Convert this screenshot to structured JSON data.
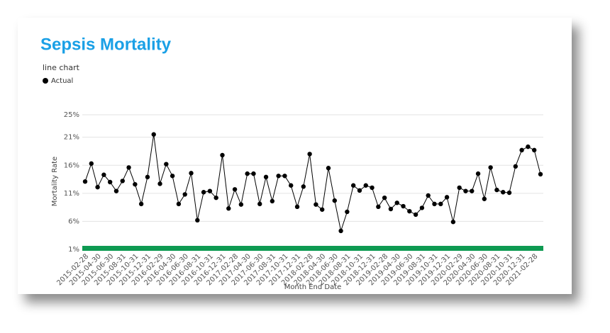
{
  "chart_data": {
    "type": "line",
    "title": "Sepsis Mortality",
    "subtitle": "line chart",
    "x_label": "Month End Date",
    "y_label": "Mortality Rate",
    "categories": [
      "2015-02-28",
      null,
      "2015-04-30",
      null,
      "2015-06-30",
      null,
      "2015-08-31",
      null,
      "2015-10-31",
      null,
      "2015-12-31",
      null,
      "2016-02-29",
      null,
      "2016-04-30",
      null,
      "2016-06-30",
      null,
      "2016-08-31",
      null,
      "2016-10-31",
      null,
      "2016-12-31",
      null,
      "2017-02-28",
      null,
      "2017-04-30",
      null,
      "2017-06-30",
      null,
      "2017-08-31",
      null,
      "2017-10-31",
      null,
      "2017-12-31",
      null,
      "2018-02-28",
      null,
      "2018-04-30",
      null,
      "2018-06-30",
      null,
      "2018-08-31",
      null,
      "2018-10-31",
      null,
      "2018-12-31",
      null,
      "2019-02-28",
      null,
      "2019-04-30",
      null,
      "2019-06-30",
      null,
      "2019-08-31",
      null,
      "2019-10-31",
      null,
      "2019-12-31",
      null,
      "2020-02-29",
      null,
      "2020-04-30",
      null,
      "2020-06-30",
      null,
      "2020-08-31",
      null,
      "2020-10-31",
      null,
      "2020-12-31",
      null,
      "2021-02-28",
      null
    ],
    "series": [
      {
        "name": "Actual",
        "color": "#000000",
        "values": [
          13.1,
          16.3,
          12.1,
          14.3,
          13.0,
          11.4,
          13.2,
          15.6,
          12.6,
          9.1,
          13.9,
          21.5,
          12.7,
          16.2,
          14.1,
          9.1,
          10.8,
          14.6,
          6.2,
          11.2,
          11.4,
          10.2,
          17.8,
          8.3,
          11.7,
          9.0,
          14.5,
          14.5,
          9.1,
          13.9,
          9.6,
          14.1,
          14.1,
          12.4,
          8.6,
          12.2,
          18.0,
          9.0,
          8.1,
          15.5,
          9.7,
          4.3,
          7.7,
          12.4,
          11.5,
          12.4,
          12.0,
          8.6,
          10.2,
          8.2,
          9.3,
          8.7,
          7.8,
          7.2,
          8.4,
          10.6,
          9.1,
          9.1,
          10.3,
          5.9,
          12.0,
          11.4,
          11.4,
          14.5,
          10.0,
          15.6,
          11.6,
          11.2,
          11.1,
          15.8,
          18.7,
          19.3,
          18.7,
          14.4
        ]
      }
    ],
    "ylim": [
      1,
      25
    ],
    "yticks": [
      {
        "value": 1,
        "label": "1%"
      },
      {
        "value": 6,
        "label": "6%"
      },
      {
        "value": 11,
        "label": "11%"
      },
      {
        "value": 16,
        "label": "16%"
      },
      {
        "value": 21,
        "label": "21%"
      },
      {
        "value": 25,
        "label": "25%"
      }
    ],
    "grid": true
  }
}
